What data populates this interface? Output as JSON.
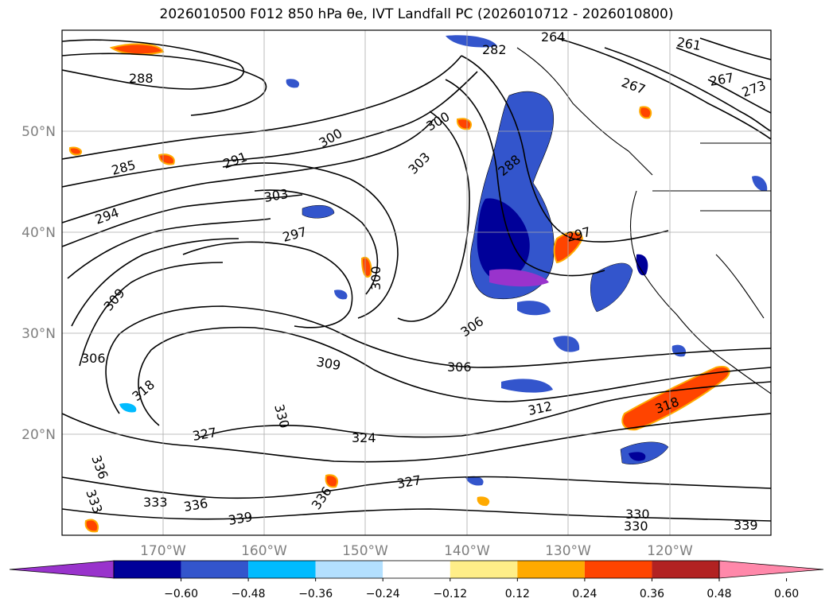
{
  "title": "2026010500 F012 850 hPa θe, IVT Landfall PC (2026010712 - 2026010800)",
  "lat_labels": [
    "50°N",
    "40°N",
    "30°N",
    "20°N"
  ],
  "lon_labels": [
    "170°W",
    "160°W",
    "150°W",
    "140°W",
    "130°W",
    "120°W"
  ],
  "colorbar": {
    "ticks": [
      "−0.60",
      "−0.48",
      "−0.36",
      "−0.24",
      "−0.12",
      "0.12",
      "0.24",
      "0.36",
      "0.48",
      "0.60"
    ],
    "colors": [
      "#9933cc",
      "#000099",
      "#3355cc",
      "#00bbff",
      "#b3e0ff",
      "#ffffff",
      "#ffee88",
      "#ffaa00",
      "#ff4400",
      "#b22222",
      "#ff88aa"
    ]
  },
  "contour_labels": [
    {
      "text": "288"
    },
    {
      "text": "285"
    },
    {
      "text": "291"
    },
    {
      "text": "294"
    },
    {
      "text": "297"
    },
    {
      "text": "300"
    },
    {
      "text": "303"
    },
    {
      "text": "306"
    },
    {
      "text": "309"
    },
    {
      "text": "312"
    },
    {
      "text": "318"
    },
    {
      "text": "324"
    },
    {
      "text": "327"
    },
    {
      "text": "330"
    },
    {
      "text": "333"
    },
    {
      "text": "336"
    },
    {
      "text": "339"
    },
    {
      "text": "261"
    },
    {
      "text": "264"
    },
    {
      "text": "267"
    },
    {
      "text": "273"
    },
    {
      "text": "282"
    }
  ]
}
